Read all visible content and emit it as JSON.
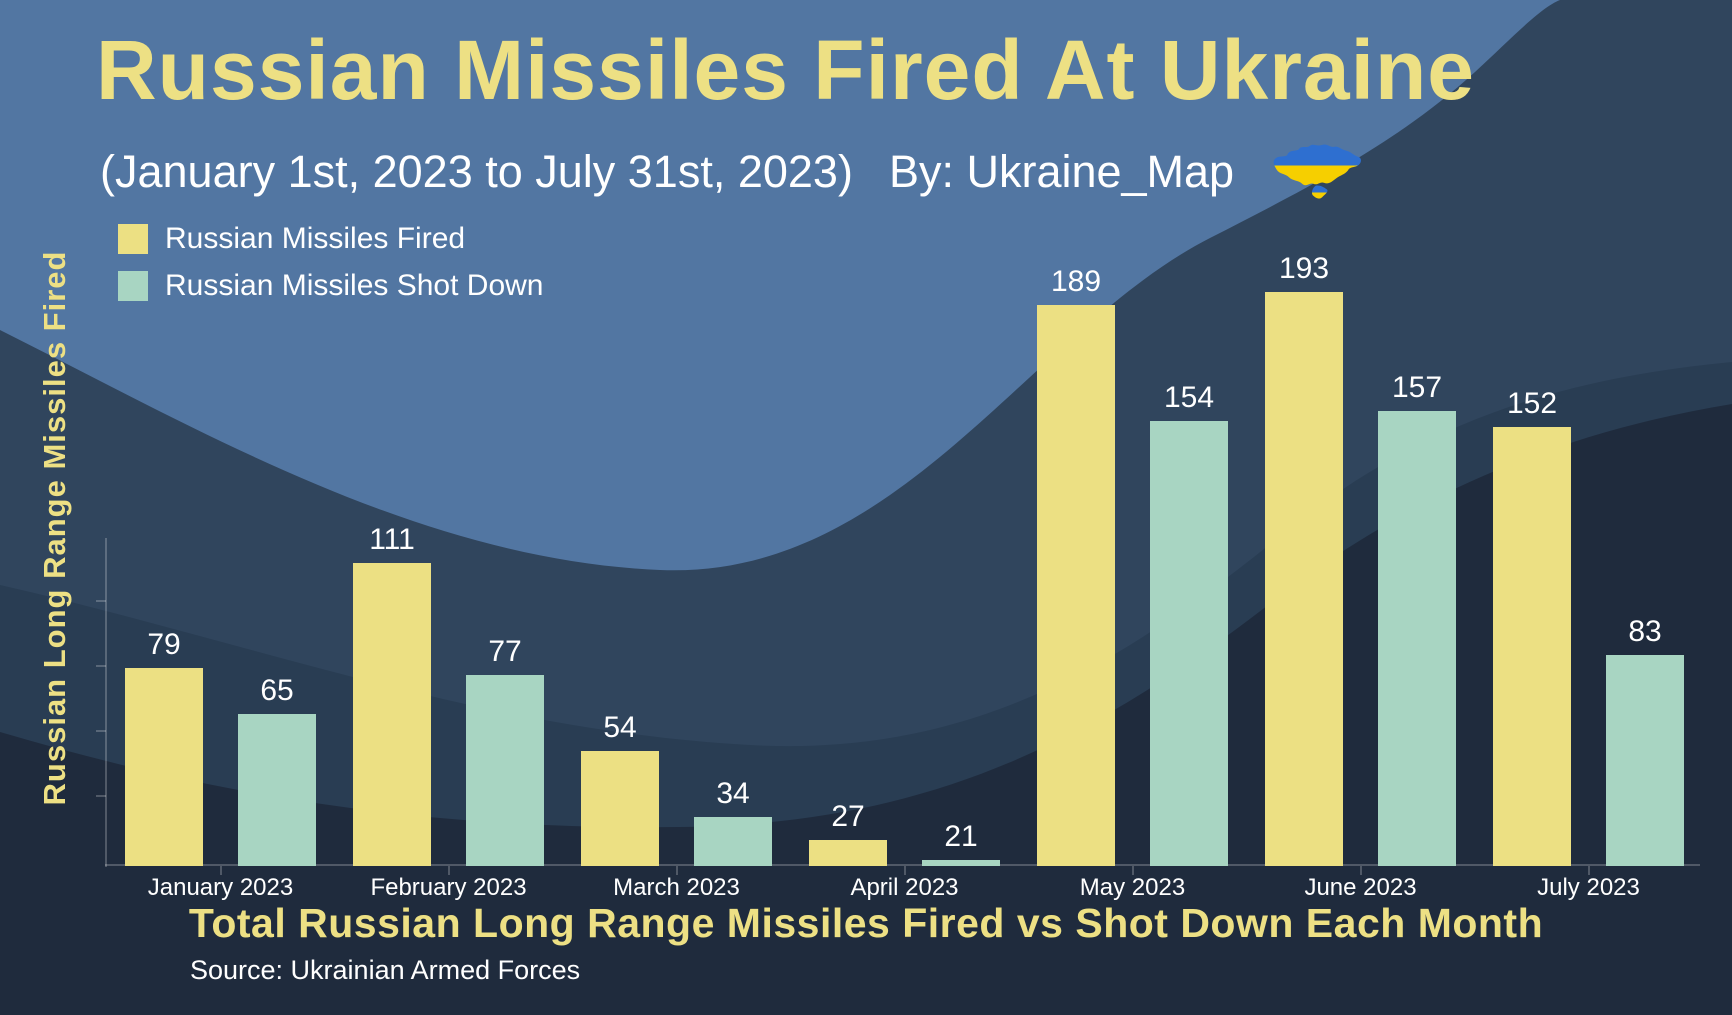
{
  "header": {
    "title": "Russian Missiles Fired At Ukraine",
    "subtitle": "(January 1st, 2023 to July 31st, 2023)",
    "byline": "By: Ukraine_Map",
    "flag_icon": "ukraine-map-icon"
  },
  "y_axis_title": "Russian Long Range Missiles Fired",
  "footer": {
    "bottom_title": "Total Russian Long Range Missiles Fired vs Shot Down Each Month",
    "source": "Source: Ukrainian Armed Forces"
  },
  "colors": {
    "title_yellow": "#ede084",
    "bar_yellow": "#ece083",
    "bar_green": "#a8d5c2",
    "text_white": "#ffffff",
    "bg_light_blue": "#5276a2",
    "bg_medium_navy": "#30455d",
    "bg_dark_navy": "#293d53",
    "bg_darkest_navy": "#1f2b3d",
    "flag_blue": "#2e6fd0",
    "flag_yellow": "#f6cf00"
  },
  "chart_data": {
    "type": "bar",
    "categories": [
      "January 2023",
      "February 2023",
      "March 2023",
      "April 2023",
      "May 2023",
      "June 2023",
      "July 2023"
    ],
    "series": [
      {
        "name": "Russian Missiles Fired",
        "color": "#ece083",
        "values": [
          79,
          111,
          54,
          27,
          189,
          193,
          152
        ]
      },
      {
        "name": "Russian Missiles Shot Down",
        "color": "#a8d5c2",
        "values": [
          65,
          77,
          34,
          21,
          154,
          157,
          83
        ]
      }
    ],
    "title": "Russian Missiles Fired At Ukraine",
    "subtitle": "(January 1st, 2023 to July 31st, 2023)",
    "xlabel": "Total Russian Long Range Missiles Fired vs Shot Down Each Month",
    "ylabel": "Russian Long Range Missiles Fired",
    "value_labels": true,
    "legend_position": "top-left",
    "grid": false,
    "y_axis_tick_labels": "none"
  }
}
